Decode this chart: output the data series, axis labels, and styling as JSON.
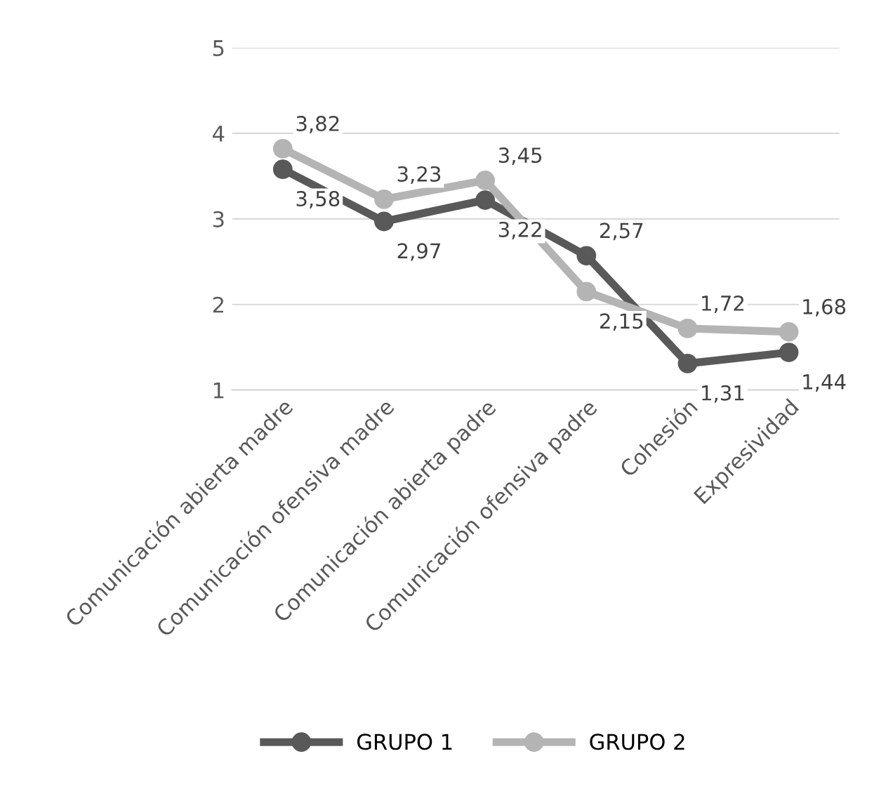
{
  "chart_data": {
    "type": "line",
    "categories": [
      "Comunicación abierta madre",
      "Comunicación ofensiva madre",
      "Comunicación abierta padre",
      "Comunicación ofensiva padre",
      "Cohesión",
      "Expresividad"
    ],
    "series": [
      {
        "name": "GRUPO 1",
        "color": "#595959",
        "values": [
          3.58,
          2.97,
          3.22,
          2.57,
          1.31,
          1.44
        ],
        "value_labels": [
          "3,58",
          "2,97",
          "3,22",
          "2,57",
          "1,31",
          "1,44"
        ]
      },
      {
        "name": "GRUPO 2",
        "color": "#b4b4b4",
        "values": [
          3.82,
          3.23,
          3.45,
          2.15,
          1.72,
          1.68
        ],
        "value_labels": [
          "3,82",
          "3,23",
          "3,45",
          "2,15",
          "1,72",
          "1,68"
        ]
      }
    ],
    "ylim": [
      1,
      5
    ],
    "yticks": [
      1,
      2,
      3,
      4,
      5
    ],
    "grid": "y",
    "legend": "bottom",
    "marker": "circle",
    "line_style": "solid"
  }
}
